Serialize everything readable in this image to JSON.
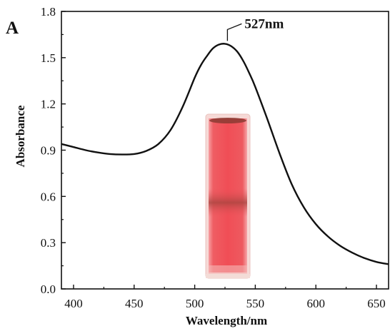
{
  "chart_data": {
    "type": "line",
    "panel_label": "A",
    "xlabel": "Wavelength/nm",
    "ylabel": "Absorbance",
    "xlim": [
      390,
      660
    ],
    "ylim": [
      0.0,
      1.8
    ],
    "x_ticks": [
      400,
      450,
      500,
      550,
      600,
      650
    ],
    "y_ticks": [
      "0.0",
      "0.3",
      "0.6",
      "0.9",
      "1.2",
      "1.5",
      "1.8"
    ],
    "grid": false,
    "series": [
      {
        "color": "#111111",
        "x": [
          390,
          400,
          410,
          420,
          430,
          440,
          450,
          460,
          470,
          480,
          490,
          500,
          505,
          510,
          515,
          520,
          525,
          530,
          535,
          540,
          545,
          550,
          560,
          570,
          580,
          590,
          600,
          610,
          620,
          630,
          640,
          650,
          660
        ],
        "y": [
          0.94,
          0.92,
          0.9,
          0.885,
          0.875,
          0.872,
          0.875,
          0.895,
          0.94,
          1.03,
          1.18,
          1.37,
          1.45,
          1.51,
          1.56,
          1.585,
          1.59,
          1.575,
          1.54,
          1.48,
          1.4,
          1.31,
          1.1,
          0.88,
          0.68,
          0.53,
          0.42,
          0.34,
          0.28,
          0.235,
          0.2,
          0.175,
          0.16
        ]
      }
    ],
    "annotations": [
      {
        "text": "527nm",
        "x": 527,
        "y": 1.59
      }
    ]
  },
  "inset": {
    "description_icon": "cuvette-photo",
    "liquid_color": "#f0525a",
    "liquid_dark": "#c83a40",
    "band_color": "#b84a44"
  }
}
